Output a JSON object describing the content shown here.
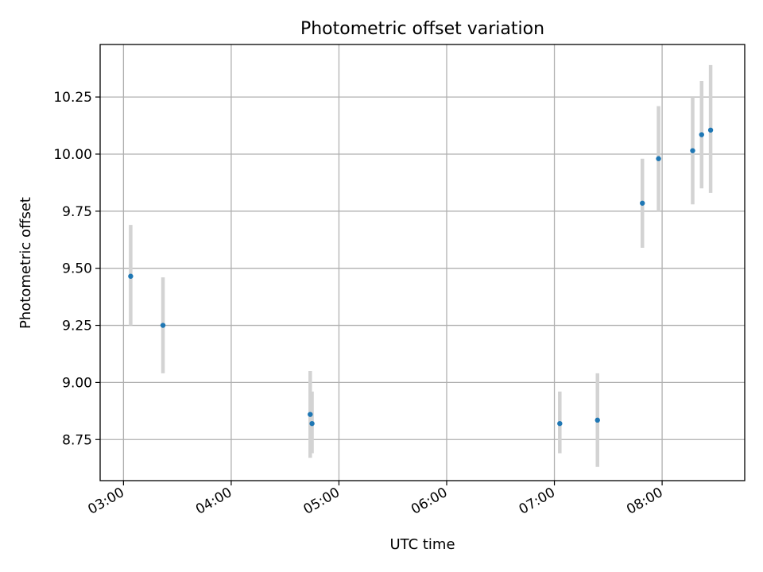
{
  "chart_data": {
    "type": "scatter",
    "title": "Photometric offset variation",
    "xlabel": "UTC time",
    "ylabel": "Photometric offset",
    "x_is_time": true,
    "xlim": [
      "02:47",
      "08:46"
    ],
    "ylim": [
      8.57,
      10.48
    ],
    "x_ticks": [
      "03:00",
      "04:00",
      "05:00",
      "06:00",
      "07:00",
      "08:00"
    ],
    "y_ticks": [
      8.75,
      9.0,
      9.25,
      9.5,
      9.75,
      10.0,
      10.25
    ],
    "y_tick_labels": [
      "8.75",
      "9.00",
      "9.25",
      "9.50",
      "9.75",
      "10.00",
      "10.25"
    ],
    "grid": true,
    "series": [
      {
        "points": [
          {
            "x": "03:04",
            "y": 9.465,
            "err_low": 9.25,
            "err_high": 9.69
          },
          {
            "x": "03:22",
            "y": 9.25,
            "err_low": 9.04,
            "err_high": 9.46
          },
          {
            "x": "04:44",
            "y": 8.86,
            "err_low": 8.67,
            "err_high": 9.05
          },
          {
            "x": "04:45",
            "y": 8.82,
            "err_low": 8.69,
            "err_high": 8.96
          },
          {
            "x": "07:03",
            "y": 8.82,
            "err_low": 8.69,
            "err_high": 8.96
          },
          {
            "x": "07:24",
            "y": 8.835,
            "err_low": 8.63,
            "err_high": 9.04
          },
          {
            "x": "07:49",
            "y": 9.785,
            "err_low": 9.59,
            "err_high": 9.98
          },
          {
            "x": "07:58",
            "y": 9.98,
            "err_low": 9.75,
            "err_high": 10.21
          },
          {
            "x": "08:17",
            "y": 10.015,
            "err_low": 9.78,
            "err_high": 10.25
          },
          {
            "x": "08:22",
            "y": 10.085,
            "err_low": 9.85,
            "err_high": 10.32
          },
          {
            "x": "08:27",
            "y": 10.105,
            "err_low": 9.83,
            "err_high": 10.39
          }
        ]
      }
    ],
    "colors": {
      "marker": "#1f77b4",
      "errorbar": "#d3d3d3",
      "grid": "#b0b0b0",
      "axes": "#000000"
    }
  }
}
